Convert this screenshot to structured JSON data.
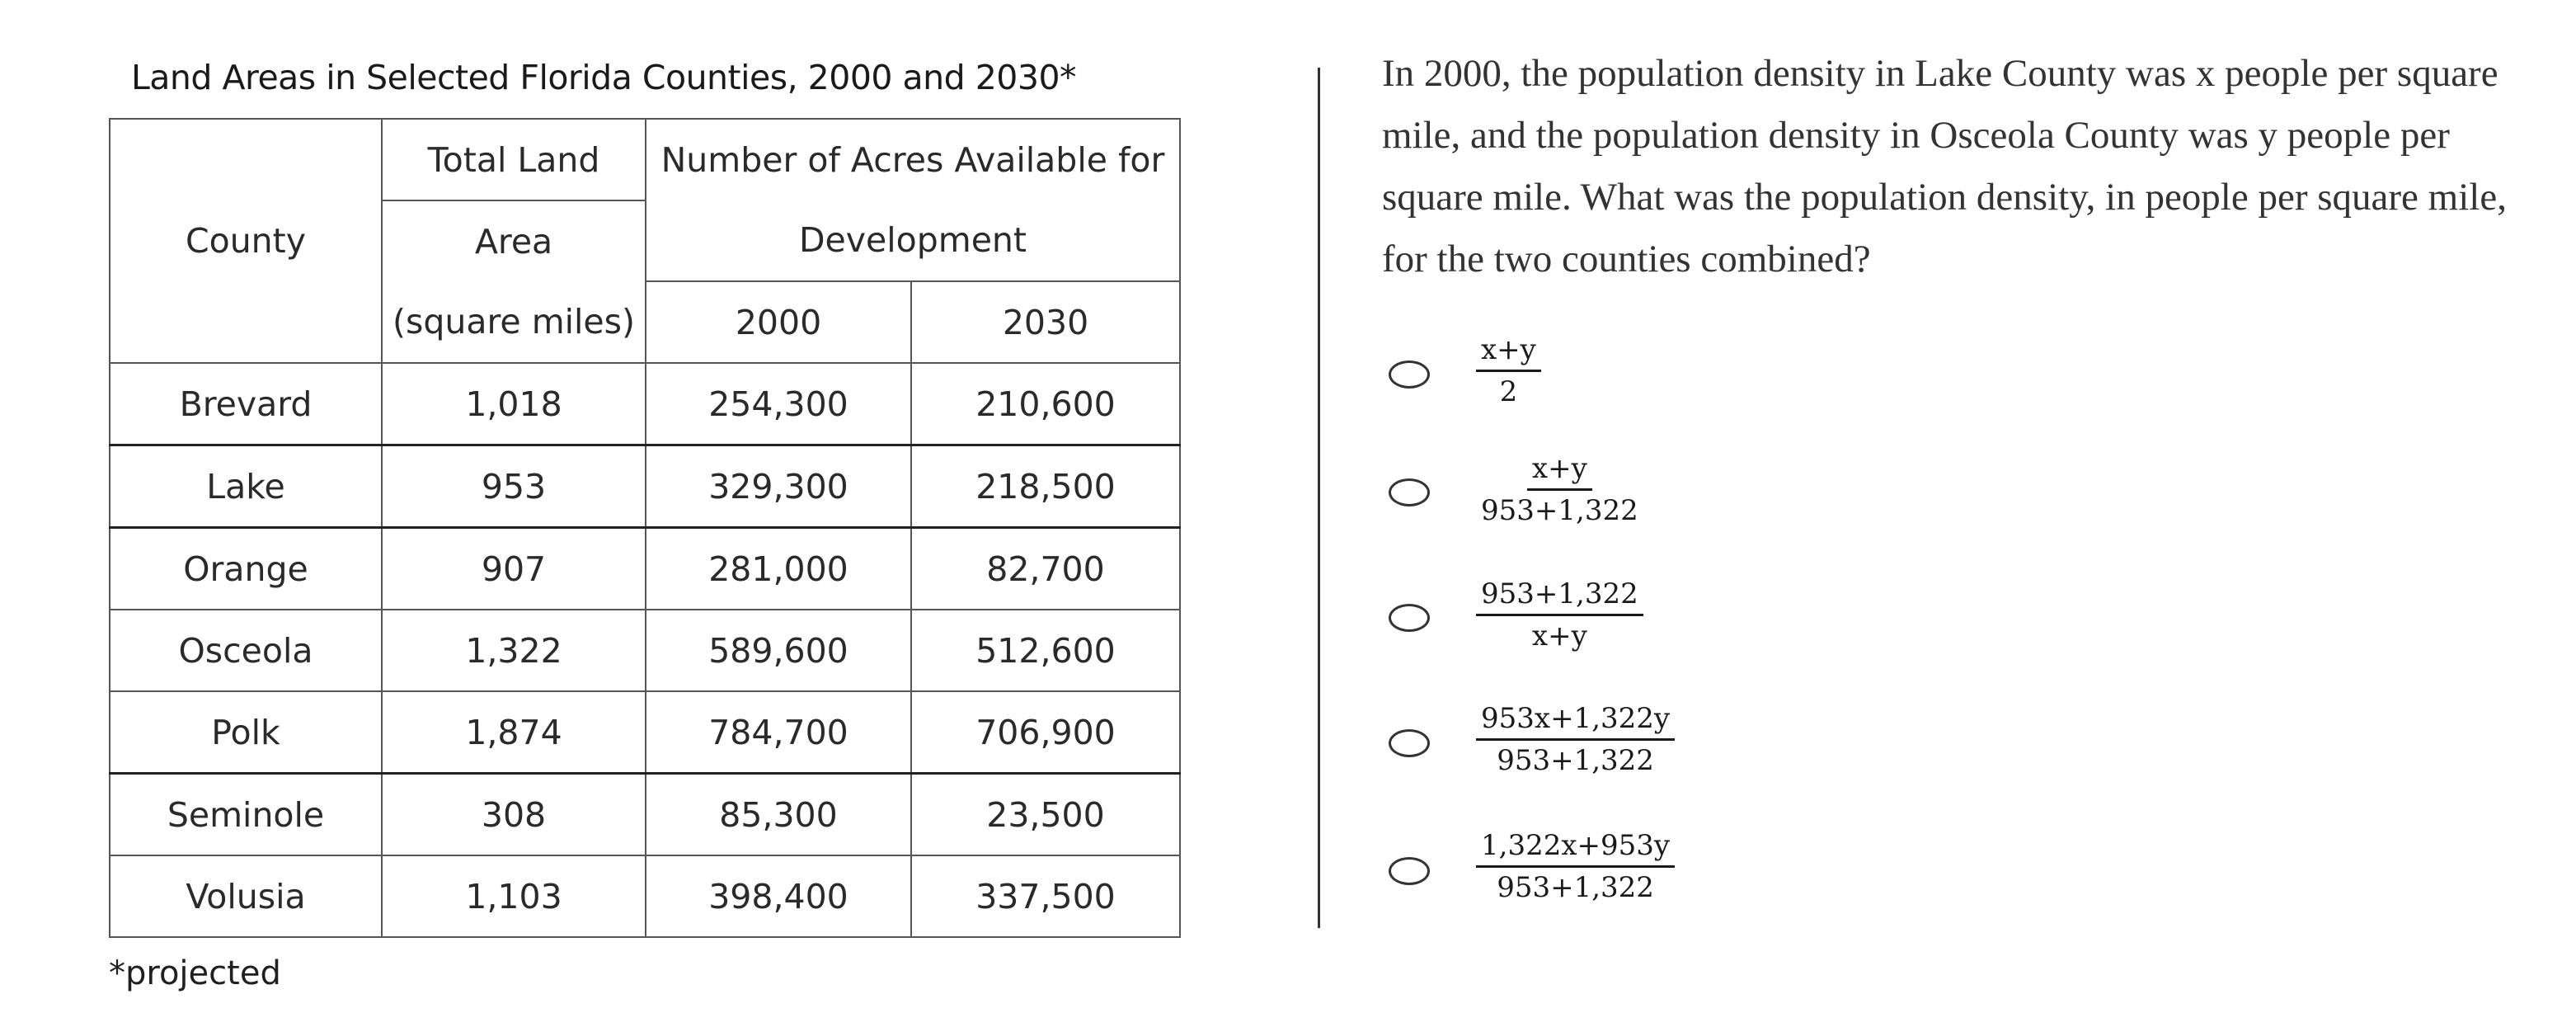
{
  "table": {
    "title": "Land Areas in Selected Florida Counties, 2000 and 2030*",
    "headers": {
      "county": "County",
      "land_area_line1": "Total Land",
      "land_area_line2": "Area",
      "land_area_line3": "(square miles)",
      "acres_line1": "Number of Acres Available for",
      "acres_line2": "Development",
      "year_2000": "2000",
      "year_2030": "2030"
    },
    "rows": [
      {
        "county": "Brevard",
        "area": "1,018",
        "acres_2000": "254,300",
        "acres_2030": "210,600"
      },
      {
        "county": "Lake",
        "area": "953",
        "acres_2000": "329,300",
        "acres_2030": "218,500"
      },
      {
        "county": "Orange",
        "area": "907",
        "acres_2000": "281,000",
        "acres_2030": "82,700"
      },
      {
        "county": "Osceola",
        "area": "1,322",
        "acres_2000": "589,600",
        "acres_2030": "512,600"
      },
      {
        "county": "Polk",
        "area": "1,874",
        "acres_2000": "784,700",
        "acres_2030": "706,900"
      },
      {
        "county": "Seminole",
        "area": "308",
        "acres_2000": "85,300",
        "acres_2030": "23,500"
      },
      {
        "county": "Volusia",
        "area": "1,103",
        "acres_2000": "398,400",
        "acres_2030": "337,500"
      }
    ],
    "footnote": "*projected"
  },
  "question": {
    "text": "In 2000, the population density in Lake County was x people per square mile, and the population density in Osceola County was y people per square mile. What was the population density, in people per square mile, for the two counties combined?"
  },
  "choices": [
    {
      "numerator": "x+y",
      "denominator": "2"
    },
    {
      "numerator": "x+y",
      "denominator": "953+1,322"
    },
    {
      "numerator": "953+1,322",
      "denominator": "x+y"
    },
    {
      "numerator": "953x+1,322y",
      "denominator": "953+1,322"
    },
    {
      "numerator": "1,322x+953y",
      "denominator": "953+1,322"
    }
  ]
}
